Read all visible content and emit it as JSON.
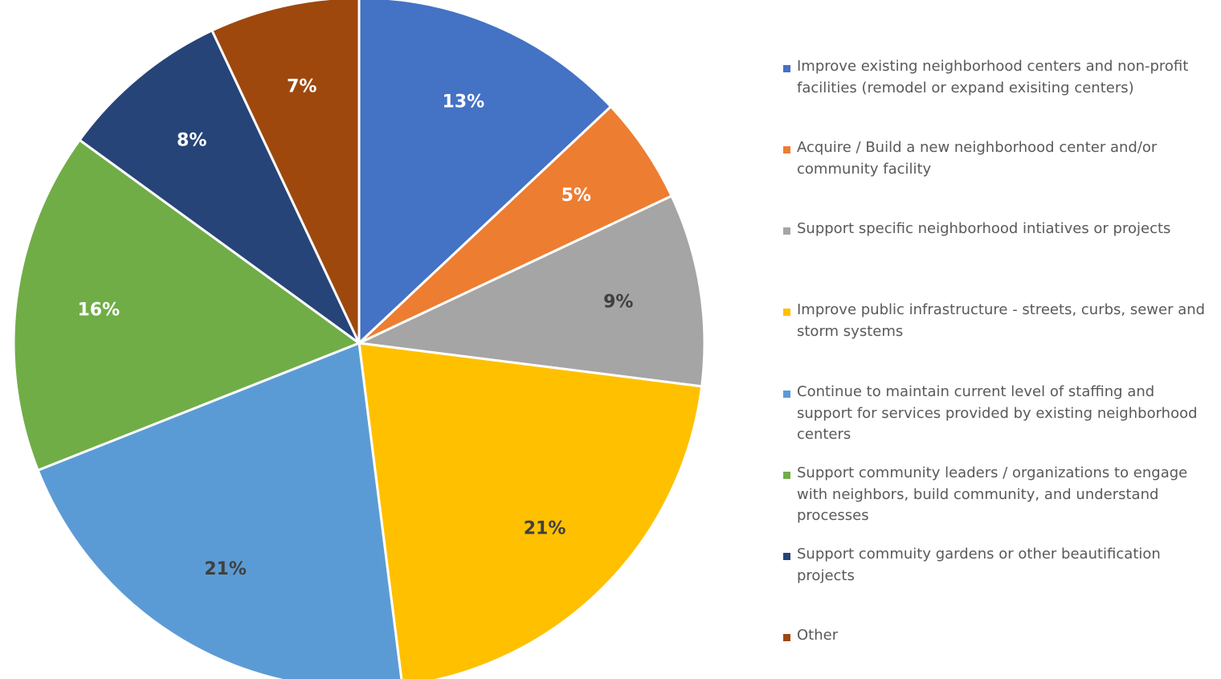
{
  "chart_data": {
    "type": "pie",
    "title": "",
    "legend_position": "right",
    "start_angle_deg": 0,
    "direction": "clockwise",
    "slices": [
      {
        "label": "Improve existing neighborhood centers and non-profit facilities (remodel or expand exisiting centers)",
        "value": 13,
        "value_label": "13%",
        "color": "#4472C4",
        "label_color": "#FFFFFF"
      },
      {
        "label": "Acquire / Build a new neighborhood center and/or community facility",
        "value": 5,
        "value_label": "5%",
        "color": "#ED7D31",
        "label_color": "#FFFFFF"
      },
      {
        "label": "Support specific neighborhood intiatives or projects",
        "value": 9,
        "value_label": "9%",
        "color": "#A5A5A5",
        "label_color": "#404040"
      },
      {
        "label": "Improve public infrastructure - streets, curbs, sewer and storm systems",
        "value": 21,
        "value_label": "21%",
        "color": "#FFC000",
        "label_color": "#404040"
      },
      {
        "label": "Continue to maintain current level of staffing and support for services provided by existing neighborhood centers",
        "value": 21,
        "value_label": "21%",
        "color": "#5B9BD5",
        "label_color": "#404040"
      },
      {
        "label": "Support community leaders / organizations to engage with neighbors, build community, and understand processes",
        "value": 16,
        "value_label": "16%",
        "color": "#70AD47",
        "label_color": "#FFFFFF"
      },
      {
        "label": "Support commuity gardens or other beautification projects",
        "value": 8,
        "value_label": "8%",
        "color": "#264478",
        "label_color": "#FFFFFF"
      },
      {
        "label": "Other",
        "value": 7,
        "value_label": "7%",
        "color": "#9E480E",
        "label_color": "#FFFFFF"
      }
    ]
  }
}
